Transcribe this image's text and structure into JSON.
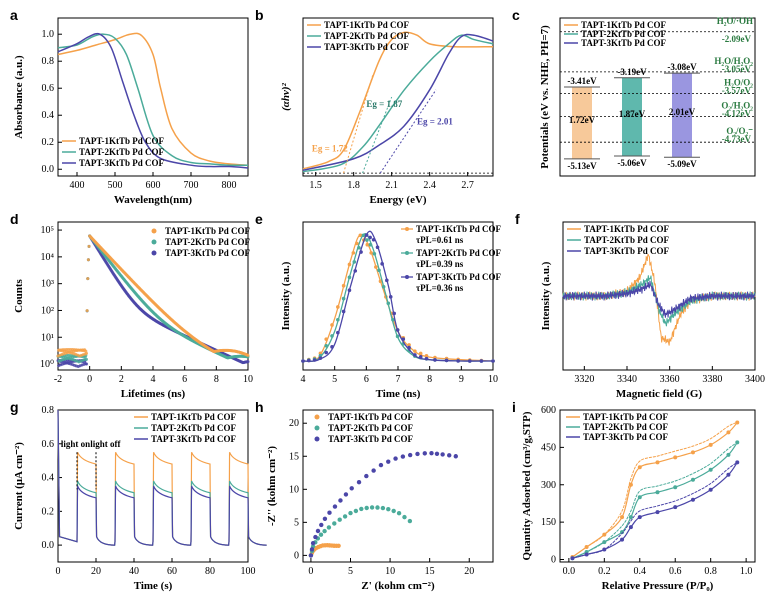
{
  "colors": {
    "s1": "#f5a14a",
    "s2": "#4bab9a",
    "s3": "#4b46a8",
    "bar1": "#f7c99a",
    "bar2": "#5fb8ad",
    "bar3": "#9a96e0"
  },
  "series_names": [
    "TAPT-1KtTb Pd COF",
    "TAPT-2KtTb Pd COF",
    "TAPT-3KtTb Pd COF"
  ],
  "chart_data": [
    {
      "id": "a",
      "label": "a",
      "type": "line",
      "xlabel": "Wavelength(nm)",
      "ylabel": "Absorbance (a.u.)",
      "xlim": [
        350,
        850
      ],
      "ylim": [
        -0.05,
        1.12
      ],
      "xticks": [
        400,
        500,
        600,
        700,
        800
      ],
      "yticks": [
        0.0,
        0.2,
        0.4,
        0.6,
        0.8,
        1.0
      ],
      "series": [
        {
          "name": "TAPT-1KtTb Pd COF",
          "x": [
            350,
            400,
            450,
            500,
            540,
            570,
            600,
            620,
            650,
            700,
            750,
            800,
            850
          ],
          "y": [
            0.85,
            0.88,
            0.92,
            0.96,
            1.0,
            0.99,
            0.85,
            0.6,
            0.3,
            0.12,
            0.06,
            0.04,
            0.03
          ]
        },
        {
          "name": "TAPT-2KtTb Pd COF",
          "x": [
            350,
            400,
            440,
            470,
            500,
            530,
            560,
            600,
            650,
            700,
            750,
            800,
            850
          ],
          "y": [
            0.9,
            0.92,
            0.98,
            1.0,
            0.97,
            0.85,
            0.6,
            0.25,
            0.1,
            0.05,
            0.04,
            0.03,
            0.03
          ]
        },
        {
          "name": "TAPT-3KtTb Pd COF",
          "x": [
            350,
            400,
            430,
            460,
            490,
            520,
            550,
            580,
            620,
            700,
            750,
            800,
            850
          ],
          "y": [
            0.87,
            0.93,
            0.98,
            1.0,
            0.9,
            0.65,
            0.4,
            0.2,
            0.08,
            0.03,
            0.02,
            0.02,
            0.01
          ]
        }
      ]
    },
    {
      "id": "b",
      "label": "b",
      "type": "line",
      "xlabel": "Energy (eV)",
      "ylabel": "(αhν)²",
      "xlim": [
        1.4,
        2.9
      ],
      "ylim": [
        0,
        1.1
      ],
      "xticks": [
        1.5,
        1.8,
        2.1,
        2.4,
        2.7
      ],
      "annotations": [
        "Eg = 1.72",
        "Eg = 1.87",
        "Eg = 2.01"
      ],
      "gaps": [
        1.72,
        1.87,
        2.01
      ],
      "series": [
        {
          "name": "TAPT-1KtTb Pd COF",
          "x": [
            1.4,
            1.6,
            1.72,
            1.85,
            2.0,
            2.1,
            2.2,
            2.3,
            2.4,
            2.6,
            2.9
          ],
          "y": [
            0.05,
            0.1,
            0.18,
            0.45,
            0.8,
            0.95,
            1.0,
            0.98,
            0.92,
            0.9,
            0.9
          ]
        },
        {
          "name": "TAPT-2KtTb Pd COF",
          "x": [
            1.4,
            1.7,
            1.87,
            2.0,
            2.2,
            2.4,
            2.55,
            2.65,
            2.75,
            2.9
          ],
          "y": [
            0.03,
            0.08,
            0.2,
            0.35,
            0.6,
            0.8,
            0.92,
            0.98,
            0.95,
            0.92
          ]
        },
        {
          "name": "TAPT-3KtTb Pd COF",
          "x": [
            1.4,
            1.8,
            2.01,
            2.2,
            2.4,
            2.55,
            2.65,
            2.75,
            2.9
          ],
          "y": [
            0.04,
            0.12,
            0.22,
            0.35,
            0.6,
            0.85,
            0.97,
            0.98,
            0.94
          ]
        }
      ]
    },
    {
      "id": "c",
      "label": "c",
      "type": "bar",
      "ylabel": "Potentials (eV vs. NHE, PH=7)",
      "bars": [
        {
          "name": "TAPT-1KtTb Pd COF",
          "cb": "-3.41eV",
          "vb": "-5.13eV",
          "gap": "1.72eV"
        },
        {
          "name": "TAPT-2KtTb Pd COF",
          "cb": "-3.19eV",
          "vb": "-5.06eV",
          "gap": "1.87eV"
        },
        {
          "name": "TAPT-3KtTb Pd COF",
          "cb": "-3.08eV",
          "vb": "-5.09eV",
          "gap": "2.01eV"
        }
      ],
      "levels": [
        {
          "label": "H₂O/·OH",
          "value": "-2.09eV"
        },
        {
          "label": "H₂O/H₂O₂",
          "value": "-3.05eV"
        },
        {
          "label": "H₂O/O₂",
          "value": "-3.57eV"
        },
        {
          "label": "O₂/H₂O₂",
          "value": "-4.12eV"
        },
        {
          "label": "O₂/O₂⁻",
          "value": "-4.73eV"
        }
      ]
    },
    {
      "id": "d",
      "label": "d",
      "type": "scatter",
      "xlabel": "Lifetimes (ns)",
      "ylabel": "Counts",
      "xlim": [
        -2,
        10
      ],
      "xticks": [
        -2,
        0,
        2,
        4,
        6,
        8,
        10
      ],
      "yscale": "log",
      "ylim": [
        0.6,
        200000
      ],
      "yticks_labels": [
        "10⁰",
        "10¹",
        "10²",
        "10³",
        "10⁴",
        "10⁵"
      ],
      "peak": 60000
    },
    {
      "id": "e",
      "label": "e",
      "type": "line",
      "xlabel": "Time (ns)",
      "ylabel": "Intensity (a.u.)",
      "xlim": [
        4,
        10
      ],
      "xticks": [
        4,
        5,
        6,
        7,
        8,
        9,
        10
      ],
      "taus": [
        "τPL=0.61 ns",
        "τPL=0.39 ns",
        "τPL=0.36 ns"
      ],
      "series": [
        {
          "name": "TAPT-1KtTb Pd COF",
          "x": [
            4,
            4.5,
            5,
            5.5,
            5.8,
            6.1,
            6.5,
            7,
            7.5,
            8,
            9,
            10
          ],
          "y": [
            0.02,
            0.05,
            0.35,
            0.8,
            1.0,
            0.9,
            0.6,
            0.25,
            0.1,
            0.05,
            0.03,
            0.02
          ]
        },
        {
          "name": "TAPT-2KtTb Pd COF",
          "x": [
            4,
            4.5,
            5,
            5.5,
            5.9,
            6.2,
            6.6,
            7,
            7.5,
            8,
            9,
            10
          ],
          "y": [
            0.02,
            0.04,
            0.25,
            0.7,
            1.0,
            0.9,
            0.55,
            0.2,
            0.06,
            0.03,
            0.02,
            0.02
          ]
        },
        {
          "name": "TAPT-3KtTb Pd COF",
          "x": [
            4,
            4.5,
            5,
            5.5,
            6.0,
            6.3,
            6.7,
            7,
            7.5,
            8,
            9,
            10
          ],
          "y": [
            0.02,
            0.03,
            0.15,
            0.6,
            1.0,
            0.95,
            0.6,
            0.25,
            0.07,
            0.03,
            0.02,
            0.02
          ]
        }
      ]
    },
    {
      "id": "f",
      "label": "f",
      "type": "line",
      "xlabel": "Magnetic field (G)",
      "ylabel": "Intensity (a.u.)",
      "xlim": [
        3310,
        3400
      ],
      "xticks": [
        3320,
        3340,
        3360,
        3380,
        3400
      ],
      "series": [
        {
          "name": "TAPT-1KtTb Pd COF",
          "x": [
            3310,
            3330,
            3340,
            3346,
            3350,
            3353,
            3356,
            3360,
            3365,
            3370,
            3380,
            3400
          ],
          "y": [
            0,
            0,
            0.1,
            0.4,
            0.9,
            0.3,
            -0.9,
            -1.0,
            -0.4,
            -0.1,
            0,
            0
          ]
        },
        {
          "name": "TAPT-2KtTb Pd COF",
          "x": [
            3310,
            3330,
            3340,
            3347,
            3351,
            3355,
            3358,
            3362,
            3370,
            3380,
            3400
          ],
          "y": [
            0,
            0,
            0.08,
            0.25,
            0.4,
            -0.3,
            -0.6,
            -0.4,
            -0.1,
            0,
            0
          ]
        },
        {
          "name": "TAPT-3KtTb Pd COF",
          "x": [
            3310,
            3330,
            3340,
            3347,
            3351,
            3355,
            3358,
            3362,
            3370,
            3380,
            3400
          ],
          "y": [
            0,
            0,
            0.05,
            0.15,
            0.25,
            -0.2,
            -0.4,
            -0.3,
            -0.05,
            0,
            0
          ]
        }
      ]
    },
    {
      "id": "g",
      "label": "g",
      "type": "line",
      "xlabel": "Time (s)",
      "ylabel": "Current (μA cm⁻²)",
      "xlim": [
        0,
        100
      ],
      "ylim": [
        -0.1,
        0.8
      ],
      "xticks": [
        0,
        20,
        40,
        60,
        80,
        100
      ],
      "yticks": [
        0.0,
        0.2,
        0.4,
        0.6,
        0.8
      ],
      "annotations": [
        "light on",
        "light off"
      ],
      "on_levels": [
        0.5,
        0.33,
        0.3
      ]
    },
    {
      "id": "h",
      "label": "h",
      "type": "scatter",
      "xlabel": "Z' (kohm cm⁻²)",
      "ylabel": "-Z'' (kohm cm⁻²)",
      "xlim": [
        -1,
        23
      ],
      "ylim": [
        -1,
        22
      ],
      "xticks": [
        0,
        5,
        10,
        15,
        20
      ],
      "yticks": [
        0,
        5,
        10,
        15,
        20
      ],
      "series": [
        {
          "name": "TAPT-1KtTb Pd COF",
          "x": [
            0,
            0.2,
            0.5,
            1,
            1.5,
            2,
            2.5,
            3,
            3.5
          ],
          "y": [
            0,
            0.6,
            1.0,
            1.3,
            1.5,
            1.55,
            1.5,
            1.45,
            1.45
          ]
        },
        {
          "name": "TAPT-2KtTb Pd COF",
          "x": [
            0,
            0.3,
            1,
            2,
            3.5,
            5,
            6.5,
            8,
            9.5,
            11,
            12.5
          ],
          "y": [
            0,
            1.5,
            2.8,
            4,
            5.3,
            6.4,
            7.1,
            7.3,
            7.1,
            6.5,
            5.2
          ]
        },
        {
          "name": "TAPT-3KtTb Pd COF",
          "x": [
            0,
            0.3,
            1,
            2,
            3.5,
            5,
            7,
            9,
            11,
            13,
            15,
            16.5,
            18.3
          ],
          "y": [
            0,
            2,
            4,
            6,
            8,
            10,
            12,
            13.8,
            14.8,
            15.3,
            15.5,
            15.3,
            15.0
          ]
        }
      ]
    },
    {
      "id": "i",
      "label": "i",
      "type": "line",
      "xlabel": "Relative Pressure (P/P₀)",
      "ylabel": "Quantity Adsorbed (cm³/g,STP)",
      "xlim": [
        -0.05,
        1.05
      ],
      "ylim": [
        -10,
        600
      ],
      "xticks": [
        0.0,
        0.2,
        0.4,
        0.6,
        0.8,
        1.0
      ],
      "yticks": [
        0,
        150,
        300,
        450,
        600
      ],
      "series": [
        {
          "name": "TAPT-1KtTb Pd COF",
          "x": [
            0.02,
            0.1,
            0.2,
            0.3,
            0.35,
            0.4,
            0.5,
            0.6,
            0.7,
            0.8,
            0.9,
            0.95
          ],
          "y": [
            10,
            50,
            100,
            170,
            300,
            370,
            390,
            410,
            430,
            460,
            510,
            550
          ]
        },
        {
          "name": "TAPT-2KtTb Pd COF",
          "x": [
            0.02,
            0.1,
            0.2,
            0.3,
            0.35,
            0.4,
            0.5,
            0.6,
            0.7,
            0.8,
            0.9,
            0.95
          ],
          "y": [
            5,
            30,
            70,
            110,
            170,
            250,
            270,
            290,
            320,
            360,
            420,
            470
          ]
        },
        {
          "name": "TAPT-3KtTb Pd COF",
          "x": [
            0.02,
            0.1,
            0.2,
            0.3,
            0.35,
            0.4,
            0.5,
            0.6,
            0.7,
            0.8,
            0.9,
            0.95
          ],
          "y": [
            5,
            20,
            40,
            80,
            130,
            170,
            190,
            210,
            240,
            280,
            340,
            390
          ]
        }
      ]
    }
  ]
}
